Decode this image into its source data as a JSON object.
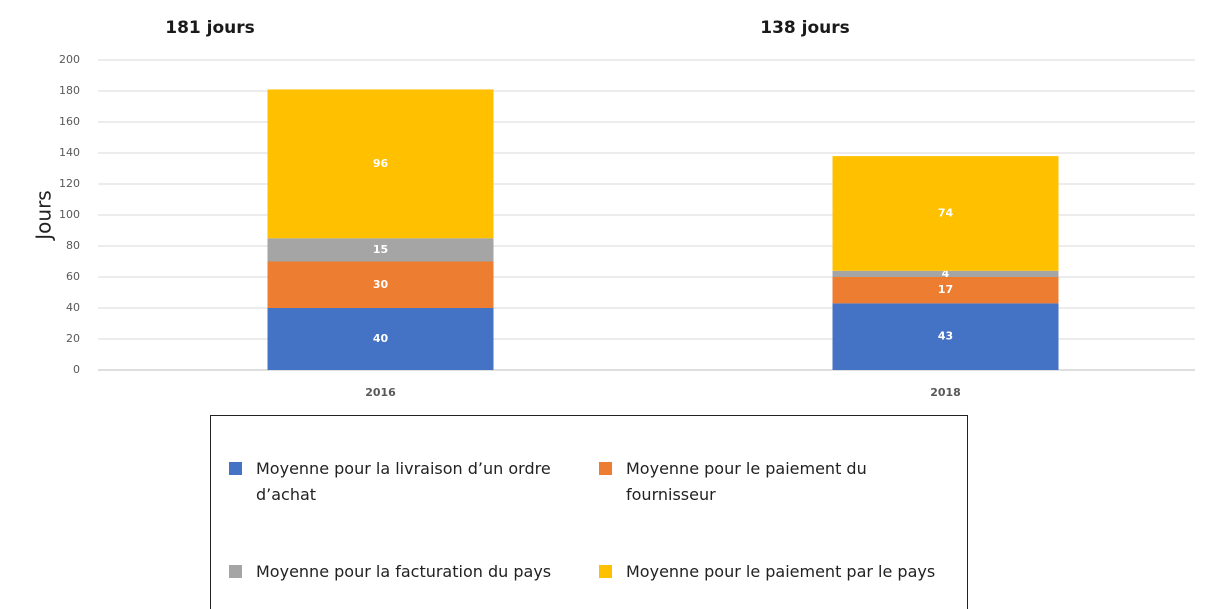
{
  "chart_data": {
    "type": "stacked_bar",
    "y_label": "Jours",
    "categories": [
      "2016",
      "2018"
    ],
    "series": [
      {
        "name": "Moyenne pour la livraison d’un ordre d’achat",
        "color": "#4472c4",
        "values": [
          40,
          43
        ]
      },
      {
        "name": "Moyenne pour le paiement du fournisseur",
        "color": "#ed7d31",
        "values": [
          30,
          17
        ]
      },
      {
        "name": "Moyenne pour la facturation du pays",
        "color": "#a5a5a5",
        "values": [
          15,
          4
        ]
      },
      {
        "name": "Moyenne pour le paiement par le pays",
        "color": "#ffc000",
        "values": [
          96,
          74
        ]
      }
    ],
    "annotations": [
      "181 jours",
      "138 jours"
    ],
    "ylim": [
      0,
      200
    ],
    "yticks": [
      0,
      20,
      40,
      60,
      80,
      100,
      120,
      140,
      160,
      180,
      200
    ],
    "grid": true
  }
}
